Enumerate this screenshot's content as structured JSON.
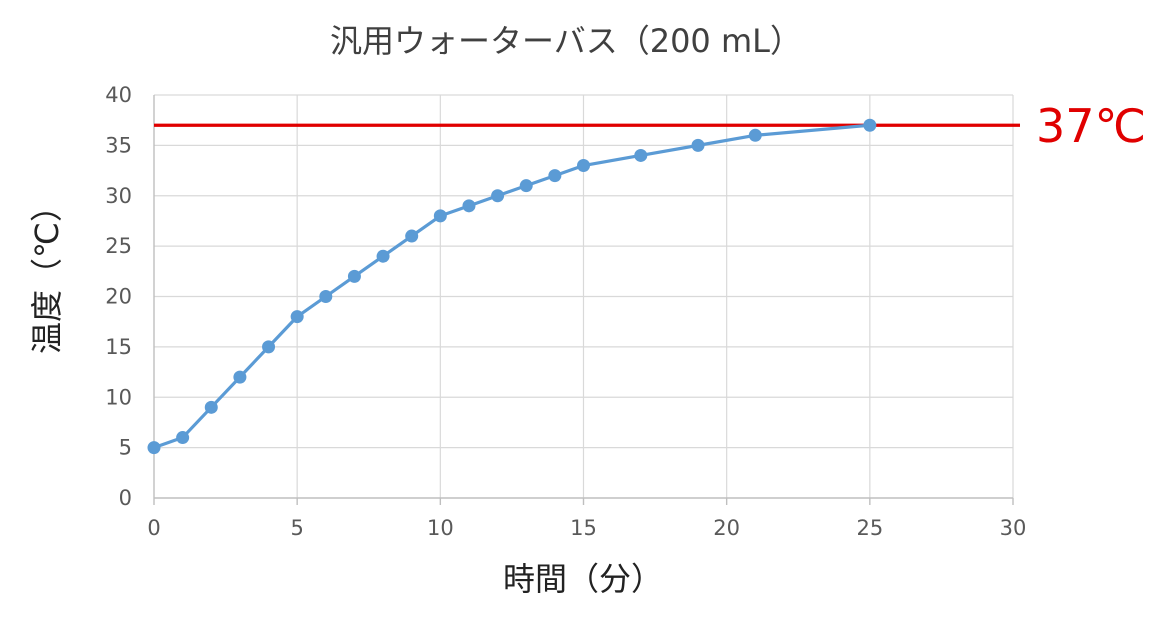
{
  "chart_data": {
    "type": "line",
    "title": "汎用ウォーターバス（200 mL）",
    "xlabel": "時間（分）",
    "ylabel": "温度（℃）",
    "xlim": [
      0,
      30
    ],
    "ylim": [
      0,
      40
    ],
    "x_ticks": [
      0,
      5,
      10,
      15,
      20,
      25,
      30
    ],
    "y_ticks": [
      0,
      5,
      10,
      15,
      20,
      25,
      30,
      35,
      40
    ],
    "grid": true,
    "legend": "none",
    "series": [
      {
        "color": "#5b9bd5",
        "x": [
          0,
          1,
          2,
          3,
          4,
          5,
          6,
          7,
          8,
          9,
          10,
          11,
          12,
          13,
          14,
          15,
          17,
          19,
          21,
          25
        ],
        "y": [
          5,
          6,
          9,
          12,
          15,
          18,
          20,
          22,
          24,
          26,
          28,
          29,
          30,
          31,
          32,
          33,
          34,
          35,
          36,
          37
        ]
      }
    ],
    "reference_line": {
      "y": 37,
      "label": "37℃",
      "color": "#e00000"
    }
  }
}
